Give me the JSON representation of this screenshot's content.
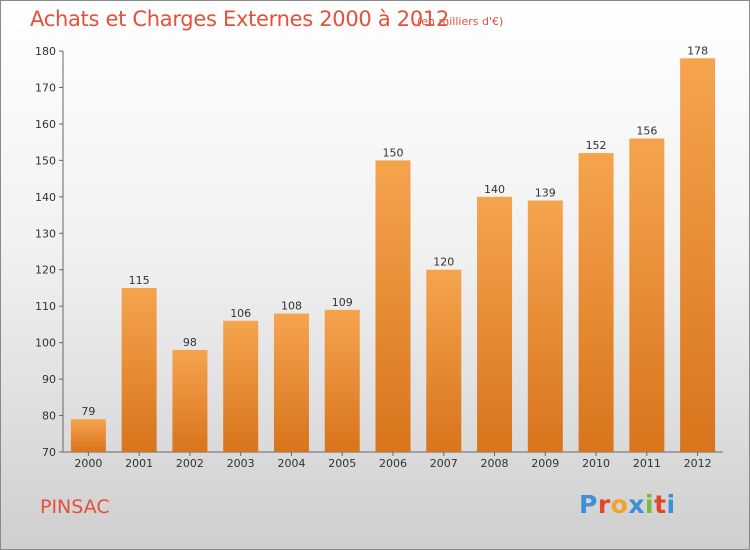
{
  "header": {
    "title": "Achats et Charges Externes 2000 à 2012",
    "subtitle": "(en milliers d'€)"
  },
  "footer": {
    "commune": "PINSAC",
    "logo_text": "Proxiti"
  },
  "colors": {
    "bar_light": "#f5a44e",
    "bar_dark": "#d8741c",
    "title": "#e5503a",
    "logo": [
      "#3f8ed6",
      "#e2462d",
      "#f2a22a",
      "#3f8ed6",
      "#78b93f",
      "#e2462d",
      "#3f8ed6"
    ]
  },
  "chart_data": {
    "type": "bar",
    "categories": [
      "2000",
      "2001",
      "2002",
      "2003",
      "2004",
      "2005",
      "2006",
      "2007",
      "2008",
      "2009",
      "2010",
      "2011",
      "2012"
    ],
    "values": [
      79,
      115,
      98,
      106,
      108,
      109,
      150,
      120,
      140,
      139,
      152,
      156,
      178
    ],
    "title": "Achats et Charges Externes 2000 à 2012",
    "subtitle": "(en milliers d'€)",
    "ylim": [
      70,
      180
    ],
    "yticks": [
      70,
      80,
      90,
      100,
      110,
      120,
      130,
      140,
      150,
      160,
      170,
      180
    ],
    "grid": false,
    "data_labels": true
  }
}
